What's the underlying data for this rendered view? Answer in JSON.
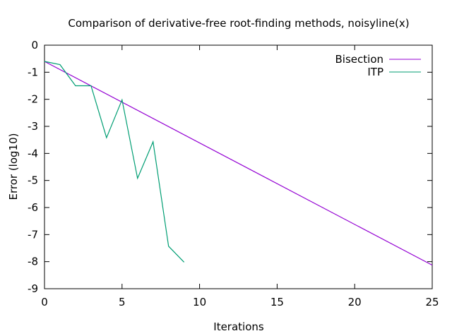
{
  "chart_data": {
    "type": "line",
    "title": "Comparison of derivative-free root-finding methods, noisyline(x)",
    "xlabel": "Iterations",
    "ylabel": "Error (log10)",
    "xlim": [
      0,
      25
    ],
    "ylim": [
      -9,
      0
    ],
    "xticks": [
      0,
      5,
      10,
      15,
      20,
      25
    ],
    "yticks": [
      0,
      -1,
      -2,
      -3,
      -4,
      -5,
      -6,
      -7,
      -8,
      -9
    ],
    "grid": false,
    "legend_position": "top-right",
    "series": [
      {
        "name": "Bisection",
        "color": "#9400d3",
        "x": [
          0,
          25
        ],
        "y": [
          -0.6,
          -8.13
        ]
      },
      {
        "name": "ITP",
        "color": "#009e73",
        "x": [
          0,
          1,
          2,
          3,
          4,
          5,
          6,
          7,
          8,
          9
        ],
        "y": [
          -0.6,
          -0.72,
          -1.5,
          -1.5,
          -3.42,
          -2.02,
          -4.92,
          -3.57,
          -7.43,
          -8.02
        ]
      }
    ]
  }
}
